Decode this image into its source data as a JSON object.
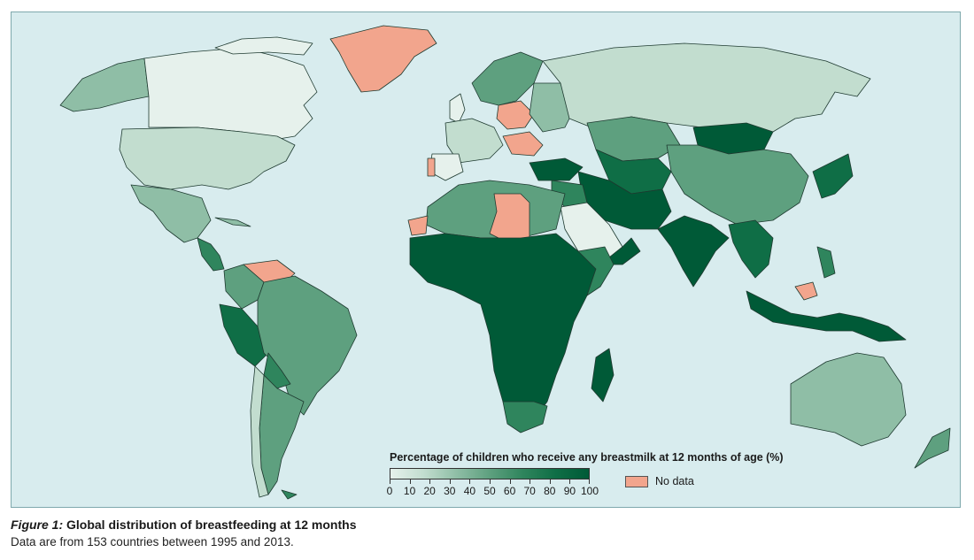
{
  "colors": {
    "ocean": "#d8ecee",
    "no_data": "#f2a58d",
    "scale": [
      "#e6f1ec",
      "#c2ddcf",
      "#8fbea6",
      "#5ea07f",
      "#2f855d",
      "#0f6e46",
      "#005a37"
    ]
  },
  "legend": {
    "title": "Percentage of children who receive any breastmilk at 12 months of age (%)",
    "ticks": [
      "0",
      "10",
      "20",
      "30",
      "40",
      "50",
      "60",
      "70",
      "80",
      "90",
      "100"
    ],
    "no_data_label": "No data"
  },
  "caption": {
    "figure_label": "Figure 1:",
    "title": "Global distribution of breastfeeding at 12 months",
    "subtitle": "Data are from 153 countries between 1995 and 2013."
  }
}
